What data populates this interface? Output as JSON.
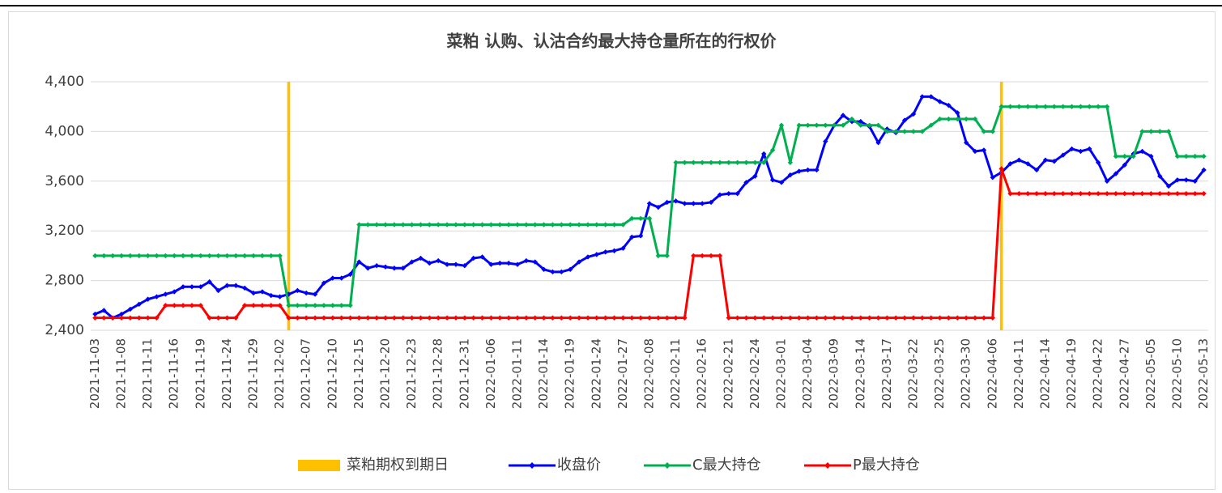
{
  "chart_data": {
    "type": "line",
    "title": "菜粕 认购、认沽合约最大持仓量所在的行权价",
    "categories": [
      "2021-11-03",
      null,
      null,
      "2021-11-08",
      null,
      null,
      "2021-11-11",
      null,
      null,
      "2021-11-16",
      null,
      null,
      "2021-11-19",
      null,
      null,
      "2021-11-24",
      null,
      null,
      "2021-11-29",
      null,
      null,
      "2021-12-02",
      null,
      null,
      "2021-12-07",
      null,
      null,
      "2021-12-10",
      null,
      null,
      "2021-12-15",
      null,
      null,
      "2021-12-20",
      null,
      null,
      "2021-12-23",
      null,
      null,
      "2021-12-28",
      null,
      null,
      "2021-12-31",
      null,
      null,
      "2022-01-06",
      null,
      null,
      "2022-01-11",
      null,
      null,
      "2022-01-14",
      null,
      null,
      "2022-01-19",
      null,
      null,
      "2022-01-24",
      null,
      null,
      "2022-01-27",
      null,
      null,
      "2022-02-08",
      null,
      null,
      "2022-02-11",
      null,
      null,
      "2022-02-16",
      null,
      null,
      "2022-02-21",
      null,
      null,
      "2022-02-24",
      null,
      null,
      "2022-03-01",
      null,
      null,
      "2022-03-04",
      null,
      null,
      "2022-03-09",
      null,
      null,
      "2022-03-14",
      null,
      null,
      "2022-03-17",
      null,
      null,
      "2022-03-22",
      null,
      null,
      "2022-03-25",
      null,
      null,
      "2022-03-30",
      null,
      null,
      "2022-04-06",
      null,
      null,
      "2022-04-11",
      null,
      null,
      "2022-04-14",
      null,
      null,
      "2022-04-19",
      null,
      null,
      "2022-04-22",
      null,
      null,
      "2022-04-27",
      null,
      null,
      "2022-05-05",
      null,
      null,
      "2022-05-10",
      null,
      null,
      "2022-05-13"
    ],
    "series": [
      {
        "name": "菜粕期权到期日",
        "type": "bar",
        "color": "#ffc000",
        "values": [
          null,
          null,
          null,
          null,
          null,
          null,
          null,
          null,
          null,
          null,
          null,
          null,
          null,
          null,
          null,
          null,
          null,
          null,
          null,
          null,
          null,
          null,
          4400,
          null,
          null,
          null,
          null,
          null,
          null,
          null,
          null,
          null,
          null,
          null,
          null,
          null,
          null,
          null,
          null,
          null,
          null,
          null,
          null,
          null,
          null,
          null,
          null,
          null,
          null,
          null,
          null,
          null,
          null,
          null,
          null,
          null,
          null,
          null,
          null,
          null,
          null,
          null,
          null,
          null,
          null,
          null,
          null,
          null,
          null,
          null,
          null,
          null,
          null,
          null,
          null,
          null,
          null,
          null,
          null,
          null,
          null,
          null,
          null,
          null,
          null,
          null,
          null,
          null,
          null,
          null,
          null,
          null,
          null,
          null,
          null,
          null,
          null,
          null,
          null,
          null,
          null,
          null,
          null,
          4400,
          null,
          null,
          null,
          null,
          null,
          null,
          null,
          null,
          null,
          null,
          null,
          null,
          null,
          null,
          null,
          null,
          null,
          null,
          null,
          null,
          null,
          null,
          null
        ]
      },
      {
        "name": "收盘价",
        "color": "#0000ff",
        "values": [
          2530,
          2560,
          2500,
          2530,
          2570,
          2610,
          2650,
          2670,
          2690,
          2710,
          2750,
          2750,
          2750,
          2790,
          2720,
          2760,
          2760,
          2740,
          2700,
          2710,
          2680,
          2670,
          2690,
          2720,
          2700,
          2690,
          2780,
          2820,
          2820,
          2850,
          2950,
          2900,
          2920,
          2910,
          2900,
          2900,
          2950,
          2980,
          2940,
          2960,
          2930,
          2930,
          2920,
          2980,
          2990,
          2930,
          2940,
          2940,
          2930,
          2960,
          2950,
          2890,
          2870,
          2870,
          2890,
          2950,
          2990,
          3010,
          3030,
          3040,
          3060,
          3150,
          3160,
          3420,
          3390,
          3430,
          3440,
          3420,
          3420,
          3420,
          3430,
          3490,
          3500,
          3500,
          3590,
          3640,
          3820,
          3610,
          3590,
          3650,
          3680,
          3690,
          3690,
          3920,
          4050,
          4130,
          4080,
          4080,
          4040,
          3910,
          4020,
          3990,
          4090,
          4140,
          4280,
          4280,
          4240,
          4210,
          4150,
          3910,
          3840,
          3850,
          3630,
          3670,
          3740,
          3770,
          3740,
          3690,
          3770,
          3760,
          3810,
          3860,
          3840,
          3860,
          3750,
          3600,
          3660,
          3730,
          3820,
          3840,
          3800,
          3640,
          3560,
          3610,
          3610,
          3600,
          3690
        ]
      },
      {
        "name": "C最大持仓",
        "color": "#00b050",
        "values": [
          3000,
          3000,
          3000,
          3000,
          3000,
          3000,
          3000,
          3000,
          3000,
          3000,
          3000,
          3000,
          3000,
          3000,
          3000,
          3000,
          3000,
          3000,
          3000,
          3000,
          3000,
          3000,
          2600,
          2600,
          2600,
          2600,
          2600,
          2600,
          2600,
          2600,
          3250,
          3250,
          3250,
          3250,
          3250,
          3250,
          3250,
          3250,
          3250,
          3250,
          3250,
          3250,
          3250,
          3250,
          3250,
          3250,
          3250,
          3250,
          3250,
          3250,
          3250,
          3250,
          3250,
          3250,
          3250,
          3250,
          3250,
          3250,
          3250,
          3250,
          3250,
          3300,
          3300,
          3300,
          3000,
          3000,
          3750,
          3750,
          3750,
          3750,
          3750,
          3750,
          3750,
          3750,
          3750,
          3750,
          3750,
          3850,
          4050,
          3750,
          4050,
          4050,
          4050,
          4050,
          4050,
          4050,
          4100,
          4050,
          4050,
          4050,
          4000,
          4000,
          4000,
          4000,
          4000,
          4050,
          4100,
          4100,
          4100,
          4100,
          4100,
          4000,
          4000,
          4200,
          4200,
          4200,
          4200,
          4200,
          4200,
          4200,
          4200,
          4200,
          4200,
          4200,
          4200,
          4200,
          3800,
          3800,
          3800,
          4000,
          4000,
          4000,
          4000,
          3800,
          3800,
          3800,
          3800
        ]
      },
      {
        "name": "P最大持仓",
        "color": "#ff0000",
        "values": [
          2500,
          2500,
          2500,
          2500,
          2500,
          2500,
          2500,
          2500,
          2600,
          2600,
          2600,
          2600,
          2600,
          2500,
          2500,
          2500,
          2500,
          2600,
          2600,
          2600,
          2600,
          2600,
          2500,
          2500,
          2500,
          2500,
          2500,
          2500,
          2500,
          2500,
          2500,
          2500,
          2500,
          2500,
          2500,
          2500,
          2500,
          2500,
          2500,
          2500,
          2500,
          2500,
          2500,
          2500,
          2500,
          2500,
          2500,
          2500,
          2500,
          2500,
          2500,
          2500,
          2500,
          2500,
          2500,
          2500,
          2500,
          2500,
          2500,
          2500,
          2500,
          2500,
          2500,
          2500,
          2500,
          2500,
          2500,
          2500,
          3000,
          3000,
          3000,
          3000,
          2500,
          2500,
          2500,
          2500,
          2500,
          2500,
          2500,
          2500,
          2500,
          2500,
          2500,
          2500,
          2500,
          2500,
          2500,
          2500,
          2500,
          2500,
          2500,
          2500,
          2500,
          2500,
          2500,
          2500,
          2500,
          2500,
          2500,
          2500,
          2500,
          2500,
          2500,
          3700,
          3500,
          3500,
          3500,
          3500,
          3500,
          3500,
          3500,
          3500,
          3500,
          3500,
          3500,
          3500,
          3500,
          3500,
          3500,
          3500,
          3500,
          3500,
          3500,
          3500,
          3500,
          3500,
          3500
        ]
      }
    ],
    "ylim": [
      2400,
      4400
    ],
    "yticks": [
      {
        "value": 2400,
        "label": "2,400"
      },
      {
        "value": 2800,
        "label": "2,800"
      },
      {
        "value": 3200,
        "label": "3,200"
      },
      {
        "value": 3600,
        "label": "3,600"
      },
      {
        "value": 4000,
        "label": "4,000"
      },
      {
        "value": 4400,
        "label": "4,400"
      }
    ],
    "grid": true
  }
}
